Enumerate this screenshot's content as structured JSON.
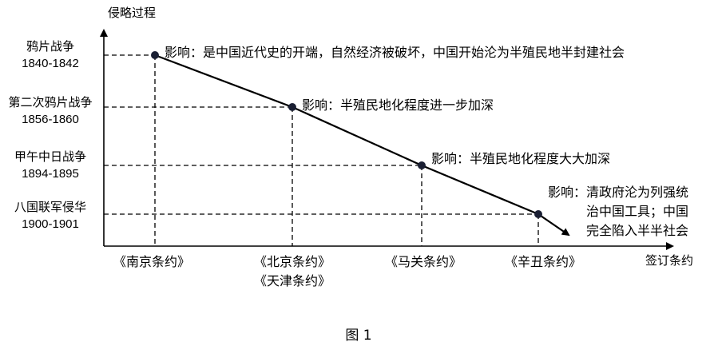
{
  "y_axis_label": "侵略过程",
  "x_axis_label": "签订条约",
  "wars": [
    {
      "name": "鸦片战争",
      "years": "1840-1842"
    },
    {
      "name": "第二次鸦片战争",
      "years": "1856-1860"
    },
    {
      "name": "甲午中日战争",
      "years": "1894-1895"
    },
    {
      "name": "八国联军侵华",
      "years": "1900-1901"
    }
  ],
  "treaties": [
    {
      "lines": [
        "《南京条约》"
      ]
    },
    {
      "lines": [
        "《北京条约》",
        "《天津条约》"
      ]
    },
    {
      "lines": [
        "《马关条约》"
      ]
    },
    {
      "lines": [
        "《辛丑条约》"
      ]
    }
  ],
  "impacts": [
    {
      "lines": [
        "影响：是中国近代史的开端，自然经济被破坏，中国开始沦为半殖民地半封建社会"
      ]
    },
    {
      "lines": [
        "影响：半殖民地化程度进一步加深"
      ]
    },
    {
      "lines": [
        "影响：半殖民地化程度大大加深"
      ]
    },
    {
      "lines": [
        "影响：清政府沦为列强统",
        "治中国工具；中国",
        "完全陷入半半社会"
      ]
    }
  ],
  "caption": "图 1"
}
